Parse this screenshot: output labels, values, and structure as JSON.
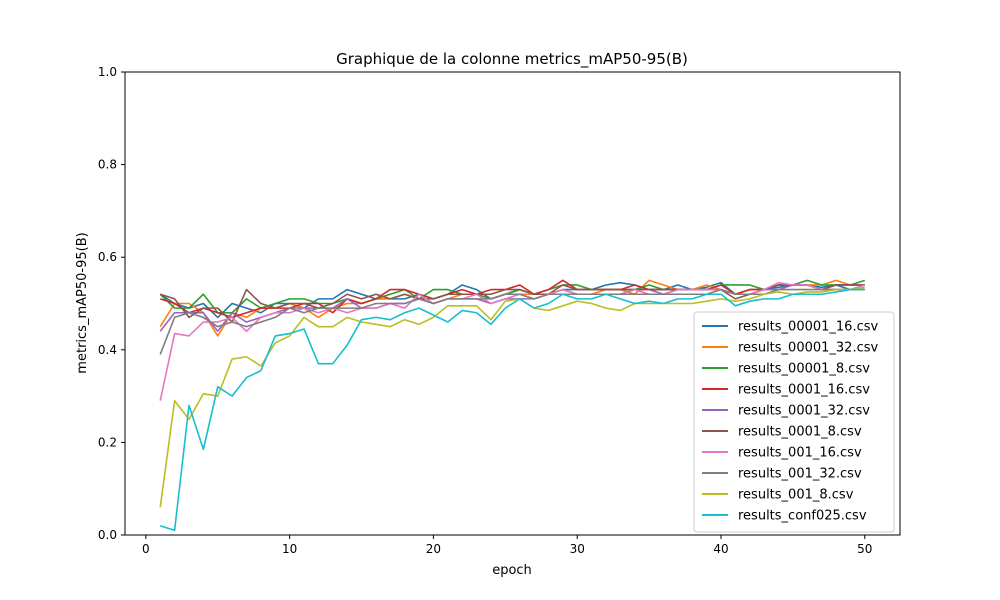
{
  "chart_data": {
    "type": "line",
    "title": "Graphique de la colonne metrics_mAP50-95(B)",
    "xlabel": "epoch",
    "ylabel": "metrics_mAP50-95(B)",
    "xlim": [
      -1.45,
      52.45
    ],
    "ylim": [
      0.0,
      1.0
    ],
    "xticks": [
      0,
      10,
      20,
      30,
      40,
      50
    ],
    "yticks": [
      0.0,
      0.2,
      0.4,
      0.6,
      0.8,
      1.0
    ],
    "xtick_labels": [
      "0",
      "10",
      "20",
      "30",
      "40",
      "50"
    ],
    "ytick_labels": [
      "0.0",
      "0.2",
      "0.4",
      "0.6",
      "0.8",
      "1.0"
    ],
    "grid": false,
    "legend_position": "lower-right",
    "x": [
      1,
      2,
      3,
      4,
      5,
      6,
      7,
      8,
      9,
      10,
      11,
      12,
      13,
      14,
      15,
      16,
      17,
      18,
      19,
      20,
      21,
      22,
      23,
      24,
      25,
      26,
      27,
      28,
      29,
      30,
      31,
      32,
      33,
      34,
      35,
      36,
      37,
      38,
      39,
      40,
      41,
      42,
      43,
      44,
      45,
      46,
      47,
      48,
      49,
      50
    ],
    "series": [
      {
        "name": "results_00001_16.csv",
        "color": "#1f77b4",
        "values": [
          0.52,
          0.5,
          0.49,
          0.5,
          0.47,
          0.5,
          0.49,
          0.48,
          0.5,
          0.5,
          0.49,
          0.51,
          0.51,
          0.53,
          0.52,
          0.51,
          0.51,
          0.51,
          0.52,
          0.51,
          0.52,
          0.54,
          0.53,
          0.51,
          0.52,
          0.53,
          0.52,
          0.52,
          0.53,
          0.53,
          0.53,
          0.54,
          0.545,
          0.54,
          0.53,
          0.53,
          0.54,
          0.53,
          0.535,
          0.545,
          0.52,
          0.53,
          0.53,
          0.535,
          0.54,
          0.54,
          0.535,
          0.54,
          0.53,
          0.54
        ]
      },
      {
        "name": "results_00001_32.csv",
        "color": "#ff7f0e",
        "values": [
          0.45,
          0.5,
          0.5,
          0.48,
          0.43,
          0.48,
          0.47,
          0.49,
          0.49,
          0.5,
          0.49,
          0.47,
          0.49,
          0.5,
          0.5,
          0.51,
          0.51,
          0.52,
          0.51,
          0.5,
          0.51,
          0.52,
          0.52,
          0.51,
          0.52,
          0.52,
          0.52,
          0.52,
          0.53,
          0.52,
          0.52,
          0.53,
          0.53,
          0.52,
          0.55,
          0.54,
          0.53,
          0.53,
          0.54,
          0.53,
          0.52,
          0.53,
          0.53,
          0.54,
          0.54,
          0.54,
          0.54,
          0.55,
          0.54,
          0.54
        ]
      },
      {
        "name": "results_00001_8.csv",
        "color": "#2ca02c",
        "values": [
          0.52,
          0.49,
          0.49,
          0.52,
          0.48,
          0.48,
          0.51,
          0.49,
          0.5,
          0.51,
          0.51,
          0.5,
          0.5,
          0.51,
          0.5,
          0.51,
          0.52,
          0.53,
          0.51,
          0.53,
          0.53,
          0.52,
          0.52,
          0.51,
          0.52,
          0.53,
          0.52,
          0.53,
          0.54,
          0.54,
          0.53,
          0.53,
          0.53,
          0.53,
          0.54,
          0.53,
          0.53,
          0.53,
          0.53,
          0.54,
          0.54,
          0.54,
          0.53,
          0.54,
          0.54,
          0.55,
          0.54,
          0.54,
          0.54,
          0.55
        ]
      },
      {
        "name": "results_0001_16.csv",
        "color": "#d62728",
        "values": [
          0.51,
          0.5,
          0.48,
          0.49,
          0.48,
          0.47,
          0.48,
          0.49,
          0.49,
          0.49,
          0.5,
          0.5,
          0.48,
          0.51,
          0.5,
          0.51,
          0.53,
          0.53,
          0.52,
          0.51,
          0.52,
          0.53,
          0.52,
          0.53,
          0.53,
          0.54,
          0.52,
          0.53,
          0.55,
          0.53,
          0.53,
          0.53,
          0.53,
          0.54,
          0.53,
          0.53,
          0.53,
          0.53,
          0.53,
          0.54,
          0.52,
          0.53,
          0.53,
          0.54,
          0.54,
          0.54,
          0.53,
          0.54,
          0.54,
          0.54
        ]
      },
      {
        "name": "results_0001_32.csv",
        "color": "#9467bd",
        "values": [
          0.44,
          0.48,
          0.48,
          0.48,
          0.44,
          0.48,
          0.46,
          0.47,
          0.48,
          0.49,
          0.49,
          0.49,
          0.49,
          0.51,
          0.49,
          0.49,
          0.5,
          0.5,
          0.51,
          0.5,
          0.51,
          0.51,
          0.51,
          0.5,
          0.51,
          0.51,
          0.51,
          0.52,
          0.52,
          0.52,
          0.52,
          0.52,
          0.52,
          0.53,
          0.53,
          0.52,
          0.53,
          0.53,
          0.53,
          0.53,
          0.52,
          0.52,
          0.53,
          0.53,
          0.54,
          0.54,
          0.53,
          0.53,
          0.53,
          0.53
        ]
      },
      {
        "name": "results_0001_8.csv",
        "color": "#8c564b",
        "values": [
          0.52,
          0.51,
          0.47,
          0.49,
          0.49,
          0.46,
          0.53,
          0.5,
          0.49,
          0.5,
          0.5,
          0.49,
          0.5,
          0.52,
          0.51,
          0.52,
          0.51,
          0.52,
          0.51,
          0.51,
          0.52,
          0.52,
          0.52,
          0.52,
          0.53,
          0.53,
          0.52,
          0.52,
          0.54,
          0.53,
          0.53,
          0.53,
          0.53,
          0.53,
          0.53,
          0.53,
          0.53,
          0.53,
          0.53,
          0.53,
          0.51,
          0.52,
          0.53,
          0.54,
          0.54,
          0.54,
          0.53,
          0.54,
          0.54,
          0.54
        ]
      },
      {
        "name": "results_001_16.csv",
        "color": "#e377c2",
        "values": [
          0.29,
          0.435,
          0.43,
          0.46,
          0.46,
          0.47,
          0.44,
          0.47,
          0.48,
          0.48,
          0.49,
          0.48,
          0.49,
          0.48,
          0.49,
          0.49,
          0.5,
          0.49,
          0.52,
          0.5,
          0.51,
          0.51,
          0.52,
          0.5,
          0.51,
          0.52,
          0.51,
          0.52,
          0.53,
          0.52,
          0.52,
          0.52,
          0.52,
          0.53,
          0.52,
          0.52,
          0.53,
          0.53,
          0.53,
          0.53,
          0.52,
          0.52,
          0.53,
          0.545,
          0.54,
          0.54,
          0.53,
          0.53,
          0.53,
          0.54
        ]
      },
      {
        "name": "results_001_32.csv",
        "color": "#7f7f7f",
        "values": [
          0.39,
          0.47,
          0.48,
          0.47,
          0.45,
          0.46,
          0.45,
          0.46,
          0.47,
          0.49,
          0.48,
          0.49,
          0.49,
          0.49,
          0.49,
          0.5,
          0.5,
          0.5,
          0.51,
          0.5,
          0.51,
          0.51,
          0.51,
          0.51,
          0.52,
          0.52,
          0.51,
          0.52,
          0.52,
          0.52,
          0.52,
          0.52,
          0.52,
          0.52,
          0.52,
          0.52,
          0.52,
          0.52,
          0.52,
          0.53,
          0.52,
          0.52,
          0.52,
          0.53,
          0.53,
          0.53,
          0.53,
          0.53,
          0.53,
          0.53
        ]
      },
      {
        "name": "results_001_8.csv",
        "color": "#bcbd22",
        "values": [
          0.06,
          0.29,
          0.25,
          0.305,
          0.3,
          0.38,
          0.385,
          0.365,
          0.415,
          0.43,
          0.47,
          0.45,
          0.45,
          0.47,
          0.46,
          0.455,
          0.45,
          0.465,
          0.455,
          0.47,
          0.495,
          0.495,
          0.495,
          0.465,
          0.505,
          0.51,
          0.49,
          0.485,
          0.495,
          0.505,
          0.5,
          0.49,
          0.485,
          0.5,
          0.5,
          0.5,
          0.5,
          0.5,
          0.505,
          0.51,
          0.505,
          0.51,
          0.52,
          0.525,
          0.52,
          0.525,
          0.525,
          0.53,
          0.53,
          0.535
        ]
      },
      {
        "name": "results_conf025.csv",
        "color": "#17becf",
        "values": [
          0.02,
          0.01,
          0.28,
          0.185,
          0.32,
          0.3,
          0.34,
          0.355,
          0.43,
          0.435,
          0.445,
          0.37,
          0.37,
          0.41,
          0.465,
          0.47,
          0.465,
          0.48,
          0.49,
          0.475,
          0.46,
          0.485,
          0.48,
          0.455,
          0.49,
          0.51,
          0.49,
          0.5,
          0.52,
          0.51,
          0.51,
          0.52,
          0.51,
          0.5,
          0.505,
          0.5,
          0.51,
          0.51,
          0.52,
          0.52,
          0.495,
          0.505,
          0.51,
          0.51,
          0.52,
          0.52,
          0.52,
          0.525,
          0.53,
          0.53
        ]
      }
    ]
  }
}
